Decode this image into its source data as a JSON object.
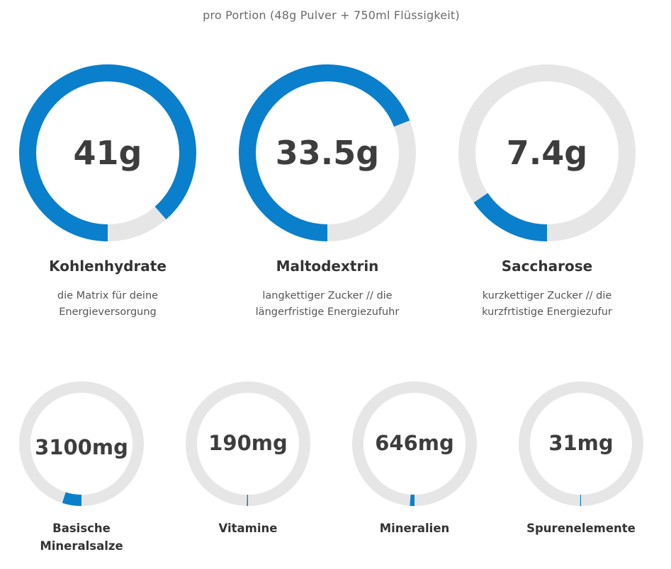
{
  "header": {
    "subtitle": "pro Portion (48g Pulver + 750ml Flüssigkeit)"
  },
  "colors": {
    "fill": "#0a7fcc",
    "track": "#e6e6e6"
  },
  "chart_data": [
    {
      "type": "donut",
      "value_label": "41g",
      "fraction": 0.885,
      "label": "Kohlenhydrate",
      "description": "die Matrix für deine Energieversorgung"
    },
    {
      "type": "donut",
      "value_label": "33.5g",
      "fraction": 0.69,
      "label": "Maltodextrin",
      "description": "langkettiger Zucker // die längerfristige Energiezufuhr"
    },
    {
      "type": "donut",
      "value_label": "7.4g",
      "fraction": 0.155,
      "label": "Saccharose",
      "description": "kurzkettiger Zucker // die kurzfrtistige Energiezufur"
    },
    {
      "type": "donut",
      "value_label": "3100mg",
      "fraction": 0.05,
      "label": "Basische Mineralsalze",
      "description": ""
    },
    {
      "type": "donut",
      "value_label": "190mg",
      "fraction": 0.003,
      "label": "Vitamine",
      "description": ""
    },
    {
      "type": "donut",
      "value_label": "646mg",
      "fraction": 0.012,
      "label": "Mineralien",
      "description": ""
    },
    {
      "type": "donut",
      "value_label": "31mg",
      "fraction": 0.001,
      "label": "Spurenelemente",
      "description": ""
    }
  ]
}
